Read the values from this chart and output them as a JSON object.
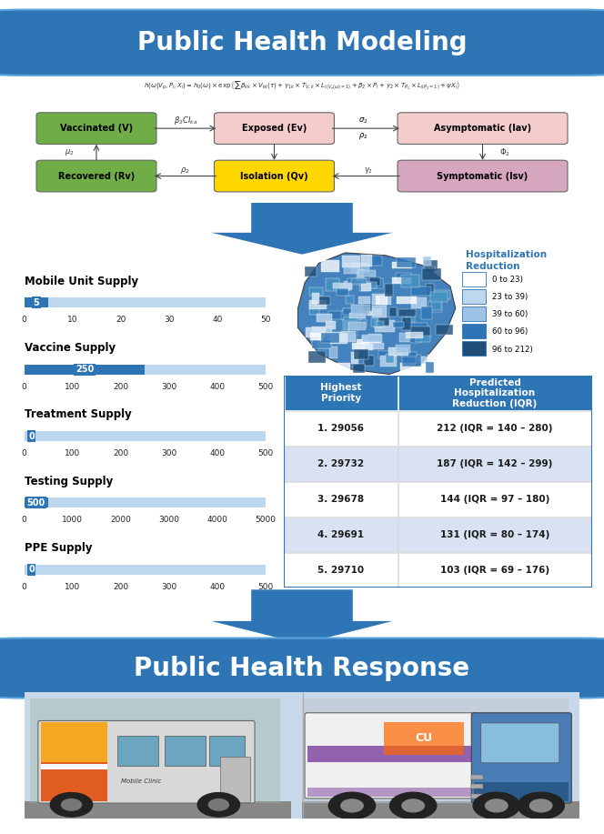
{
  "title_top": "Public Health Modeling",
  "title_bottom": "Public Health Response",
  "title_bg_color": "#2E75B6",
  "title_text_color": "#FFFFFF",
  "arrow_color": "#2E75B6",
  "sliders": [
    {
      "label": "Mobile Unit Supply",
      "value": 5,
      "max": 50,
      "ticks": [
        0,
        10,
        20,
        30,
        40,
        50
      ]
    },
    {
      "label": "Vaccine Supply",
      "value": 250,
      "max": 500,
      "ticks": [
        0,
        100,
        200,
        300,
        400,
        500
      ]
    },
    {
      "label": "Treatment Supply",
      "value": 0,
      "max": 500,
      "ticks": [
        0,
        100,
        200,
        300,
        400,
        500
      ]
    },
    {
      "label": "Testing Supply",
      "value": 500,
      "max": 5000,
      "ticks": [
        0,
        1000,
        2000,
        3000,
        4000,
        5000
      ]
    },
    {
      "label": "PPE Supply",
      "value": 0,
      "max": 500,
      "ticks": [
        0,
        100,
        200,
        300,
        400,
        500
      ]
    }
  ],
  "table_header": [
    "Highest\nPriority",
    "Predicted\nHospitalization\nReduction (IQR)"
  ],
  "table_rows": [
    [
      "1. 29056",
      "212 (IQR = 140 – 280)"
    ],
    [
      "2. 29732",
      "187 (IQR = 142 – 299)"
    ],
    [
      "3. 29678",
      "144 (IQR = 97 – 180)"
    ],
    [
      "4. 29691",
      "131 (IQR = 80 – 174)"
    ],
    [
      "5. 29710",
      "103 (IQR = 69 – 176)"
    ]
  ],
  "table_header_bg": "#2E75B6",
  "table_header_text": "#FFFFFF",
  "table_row_bg_odd": "#FFFFFF",
  "table_row_bg_even": "#D9E2F3",
  "legend_title": "Hospitalization\nReduction",
  "legend_colors": [
    "#FFFFFF",
    "#BDD7EE",
    "#9DC3E6",
    "#2E75B6",
    "#1F4E79"
  ],
  "legend_labels": [
    "0 to 23)",
    "23 to 39)",
    "39 to 60)",
    "60 to 96)",
    "96 to 212)"
  ],
  "slider_bar_color": "#2E75B6",
  "bg_color": "#FFFFFF",
  "boxes": [
    {
      "label": "Vaccinated (V)",
      "fc": "#70AD47"
    },
    {
      "label": "Exposed (Ev)",
      "fc": "#F4CCCC"
    },
    {
      "label": "Asymptomatic (Iav)",
      "fc": "#F4CCCC"
    },
    {
      "label": "Recovered (Rv)",
      "fc": "#70AD47"
    },
    {
      "label": "Isolation (Qv)",
      "fc": "#FFD700"
    },
    {
      "label": "Symptomatic (Isv)",
      "fc": "#D5A6BD"
    }
  ]
}
